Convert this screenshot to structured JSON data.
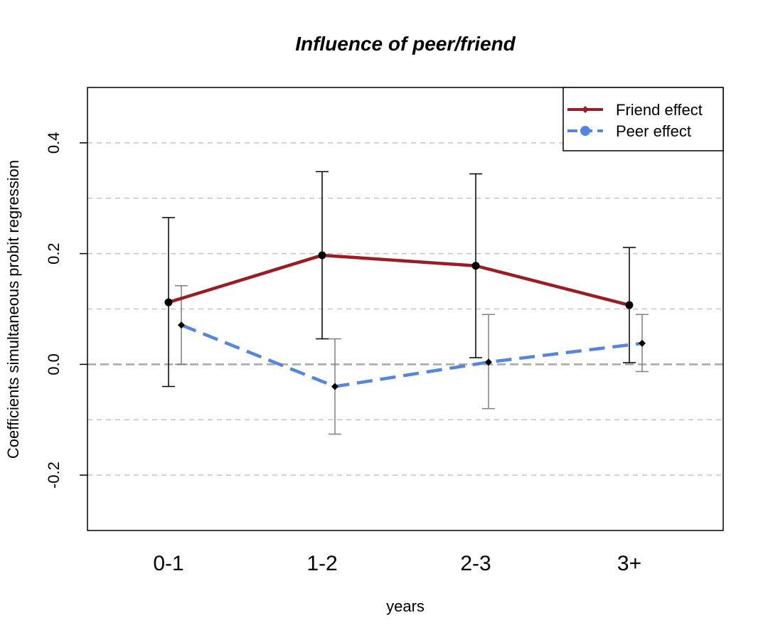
{
  "chart_data": {
    "type": "line",
    "title": "Influence of peer/friend",
    "xlabel": "years",
    "ylabel": "Coefficients simultaneous probit regression",
    "categories": [
      "0-1",
      "1-2",
      "2-3",
      "3+"
    ],
    "ylim": [
      -0.3,
      0.5
    ],
    "yticks": [
      "0.4",
      "0.2",
      "0.0",
      "-0.2"
    ],
    "ytick_values": [
      0.4,
      0.2,
      0.0,
      -0.2
    ],
    "grid": "horizontal dashed",
    "legend_position": "top-right",
    "series": [
      {
        "name": "Friend effect",
        "color": "#9b1c22",
        "line_style": "solid",
        "values": [
          0.112,
          0.197,
          0.178,
          0.107
        ],
        "error_low": [
          -0.04,
          0.046,
          0.012,
          0.003
        ],
        "error_high": [
          0.265,
          0.348,
          0.344,
          0.211
        ]
      },
      {
        "name": "Peer effect",
        "color": "#5585e0",
        "line_style": "dashed",
        "values": [
          0.071,
          -0.04,
          0.004,
          0.038
        ],
        "error_low": [
          0.0,
          -0.126,
          -0.08,
          -0.013
        ],
        "error_high": [
          0.142,
          0.046,
          0.09,
          0.09
        ]
      }
    ]
  }
}
